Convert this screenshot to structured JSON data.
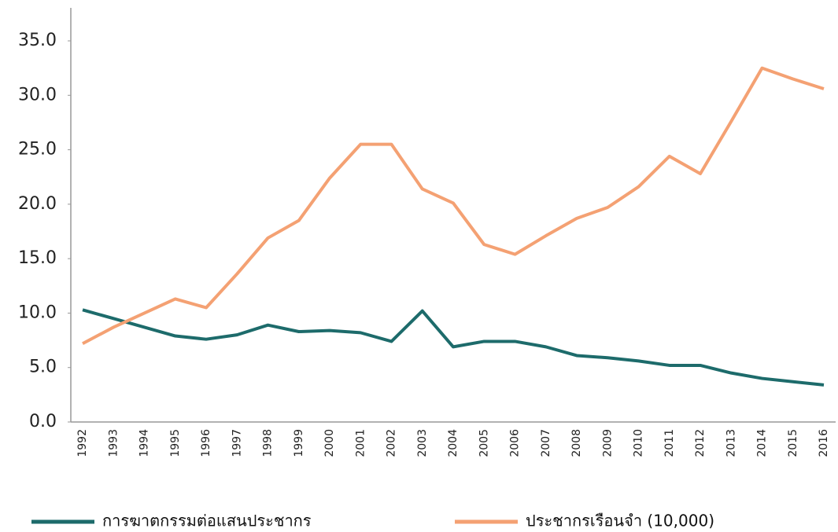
{
  "chart_data": {
    "type": "line",
    "categories": [
      "1992",
      "1993",
      "1994",
      "1995",
      "1996",
      "1997",
      "1998",
      "1999",
      "2000",
      "2001",
      "2002",
      "2003",
      "2004",
      "2005",
      "2006",
      "2007",
      "2008",
      "2009",
      "2010",
      "2011",
      "2012",
      "2013",
      "2014",
      "2015",
      "2016"
    ],
    "series": [
      {
        "name": "การฆาตกรรมต่อแสนประชากร",
        "color": "#1d6b6b",
        "values": [
          10.3,
          9.5,
          8.7,
          7.9,
          7.6,
          8.0,
          8.9,
          8.3,
          8.4,
          8.2,
          7.4,
          10.2,
          6.9,
          7.4,
          7.4,
          6.9,
          6.1,
          5.9,
          5.6,
          5.2,
          5.2,
          4.5,
          4.0,
          3.7,
          3.4
        ]
      },
      {
        "name": "ประชากรเรือนจำ (10,000)",
        "color": "#f4a173",
        "values": [
          7.2,
          8.7,
          10.0,
          11.3,
          10.5,
          13.6,
          16.9,
          18.5,
          22.4,
          25.5,
          25.5,
          21.4,
          20.1,
          16.3,
          15.4,
          17.1,
          18.7,
          19.7,
          21.6,
          24.4,
          22.8,
          27.6,
          32.5,
          31.5,
          30.6
        ]
      }
    ],
    "ylim": [
      0,
      35
    ],
    "yticks": [
      {
        "value": 0,
        "label": "0.0"
      },
      {
        "value": 5,
        "label": "5.0"
      },
      {
        "value": 10,
        "label": "10.0"
      },
      {
        "value": 15,
        "label": "15.0"
      },
      {
        "value": 20,
        "label": "20.0"
      },
      {
        "value": 25,
        "label": "25.0"
      },
      {
        "value": 30,
        "label": "30.0"
      },
      {
        "value": 35,
        "label": "35.0"
      }
    ],
    "legend": "bottom"
  }
}
